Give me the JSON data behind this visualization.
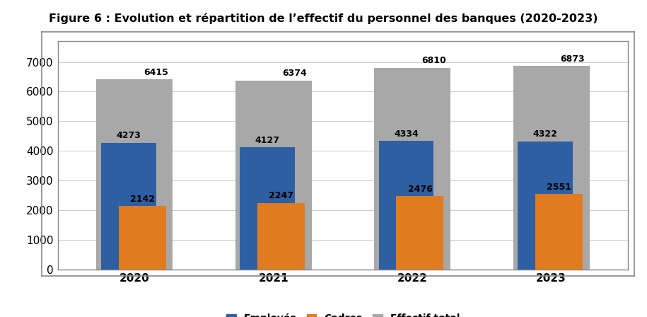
{
  "title": "Figure 6 : Evolution et répartition de l’effectif du personnel des banques (2020-2023)",
  "years": [
    "2020",
    "2021",
    "2022",
    "2023"
  ],
  "series": {
    "Effectif total": [
      6415,
      6374,
      6810,
      6873
    ],
    "Employés": [
      4273,
      4127,
      4334,
      4322
    ],
    "Cadres": [
      2142,
      2247,
      2476,
      2551
    ]
  },
  "colors": {
    "Employés": "#2E5FA3",
    "Cadres": "#E07B20",
    "Effectif total": "#A8A8A8"
  },
  "ylim": [
    0,
    7700
  ],
  "yticks": [
    0,
    1000,
    2000,
    3000,
    4000,
    5000,
    6000,
    7000
  ],
  "bar_width": 0.55,
  "title_fontsize": 11.5,
  "tick_fontsize": 11,
  "label_fontsize": 9,
  "legend_fontsize": 10,
  "figure_bg": "#ffffff",
  "plot_bg": "#ffffff",
  "outer_box_color": "#555555",
  "grid_color": "#cccccc"
}
